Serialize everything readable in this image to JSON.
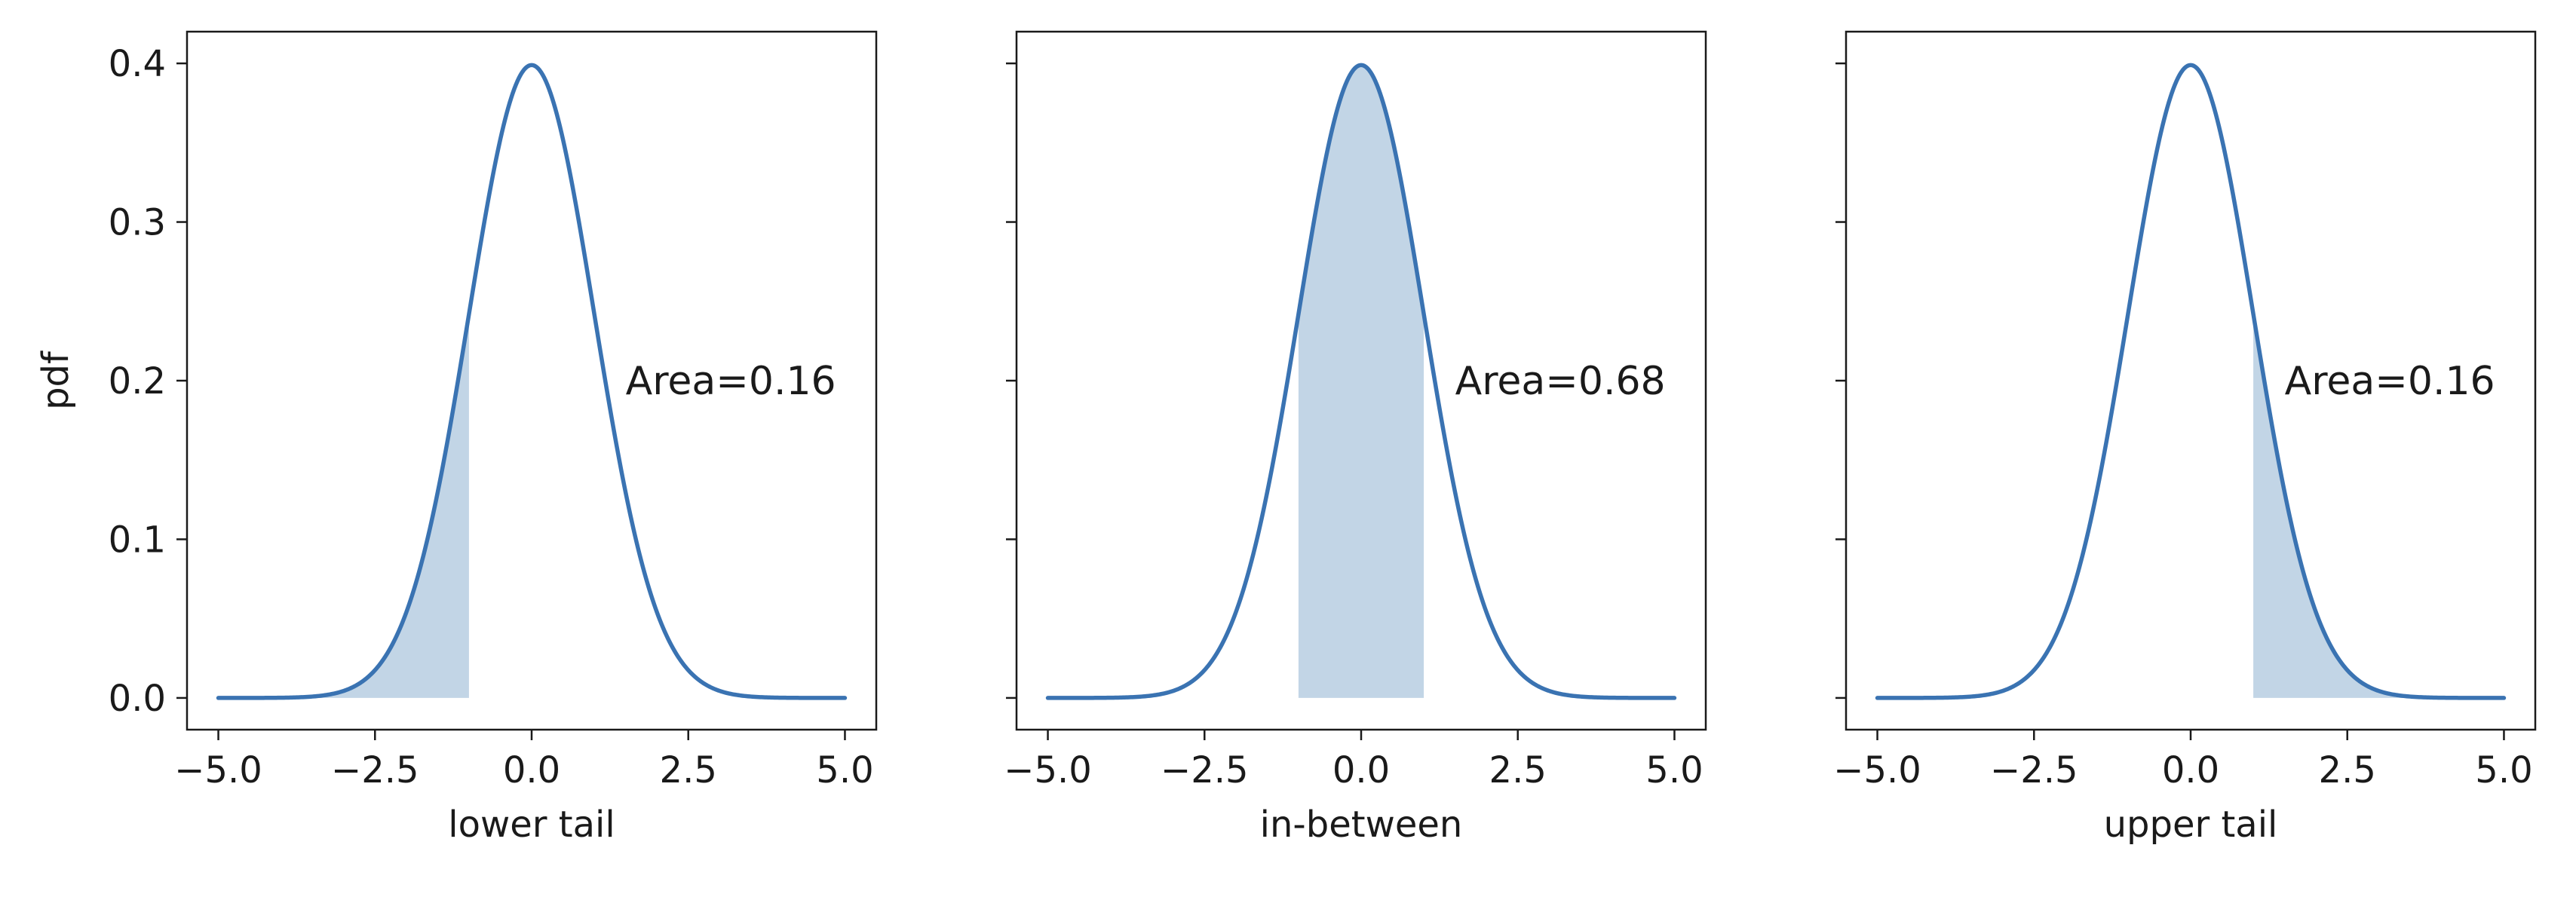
{
  "chart_data": [
    {
      "type": "area",
      "distribution": "standard normal pdf",
      "x_range": [
        -5.0,
        5.0
      ],
      "shade_range": [
        -5.0,
        -1.0
      ],
      "xlabel": "lower tail",
      "ylabel": "pdf",
      "annotation": "Area=0.16",
      "annotation_pos": {
        "x": 1.5,
        "y": 0.2
      },
      "xticks": [
        -5.0,
        -2.5,
        0.0,
        2.5,
        5.0
      ],
      "xtick_labels": [
        "−5.0",
        "−2.5",
        "0.0",
        "2.5",
        "5.0"
      ],
      "yticks": [
        0.0,
        0.1,
        0.2,
        0.3,
        0.4
      ],
      "ytick_labels": [
        "0.0",
        "0.1",
        "0.2",
        "0.3",
        "0.4"
      ],
      "xlim": [
        -5.5,
        5.5
      ],
      "ylim": [
        -0.02,
        0.42
      ],
      "show_yticklabels": true
    },
    {
      "type": "area",
      "distribution": "standard normal pdf",
      "x_range": [
        -5.0,
        5.0
      ],
      "shade_range": [
        -1.0,
        1.0
      ],
      "xlabel": "in-between",
      "ylabel": "",
      "annotation": "Area=0.68",
      "annotation_pos": {
        "x": 1.5,
        "y": 0.2
      },
      "xticks": [
        -5.0,
        -2.5,
        0.0,
        2.5,
        5.0
      ],
      "xtick_labels": [
        "−5.0",
        "−2.5",
        "0.0",
        "2.5",
        "5.0"
      ],
      "yticks": [
        0.0,
        0.1,
        0.2,
        0.3,
        0.4
      ],
      "ytick_labels": [],
      "xlim": [
        -5.5,
        5.5
      ],
      "ylim": [
        -0.02,
        0.42
      ],
      "show_yticklabels": false
    },
    {
      "type": "area",
      "distribution": "standard normal pdf",
      "x_range": [
        -5.0,
        5.0
      ],
      "shade_range": [
        1.0,
        5.0
      ],
      "xlabel": "upper tail",
      "ylabel": "",
      "annotation": "Area=0.16",
      "annotation_pos": {
        "x": 1.5,
        "y": 0.2
      },
      "xticks": [
        -5.0,
        -2.5,
        0.0,
        2.5,
        5.0
      ],
      "xtick_labels": [
        "−5.0",
        "−2.5",
        "0.0",
        "2.5",
        "5.0"
      ],
      "yticks": [
        0.0,
        0.1,
        0.2,
        0.3,
        0.4
      ],
      "ytick_labels": [],
      "xlim": [
        -5.5,
        5.5
      ],
      "ylim": [
        -0.02,
        0.42
      ],
      "show_yticklabels": false
    }
  ],
  "colors": {
    "line": "#3a73b2",
    "fill": "#c2d5e6",
    "axes": "#1a1a1a"
  }
}
